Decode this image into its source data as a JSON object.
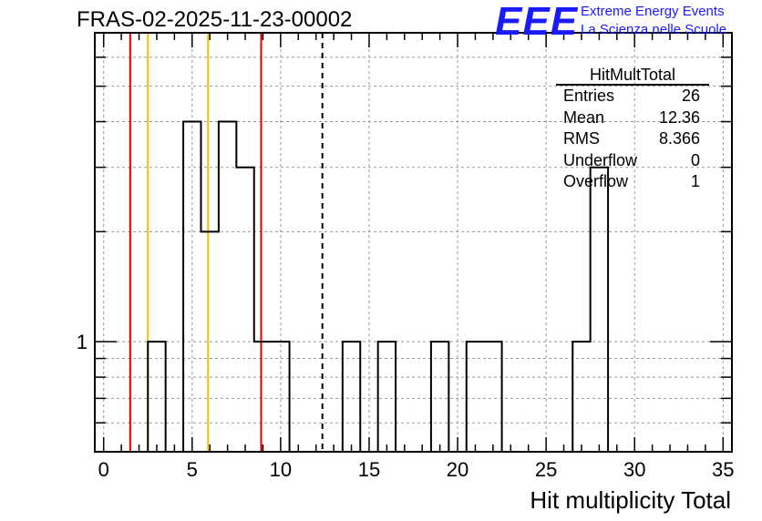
{
  "title": "FRAS-02-2025-11-23-00002",
  "logo": {
    "mark": "EEE",
    "line1": "Extreme Energy Events",
    "line2": "La Scienza nelle Scuole",
    "color": "#1a1aff"
  },
  "stats_box": {
    "name": "HitMultTotal",
    "rows": [
      {
        "label": "Entries",
        "value": "26"
      },
      {
        "label": "Mean",
        "value": "12.36"
      },
      {
        "label": "RMS",
        "value": "8.366"
      },
      {
        "label": "Underflow",
        "value": "0"
      },
      {
        "label": "Overflow",
        "value": "1"
      }
    ]
  },
  "chart_data": {
    "type": "bar",
    "title": "FRAS-02-2025-11-23-00002",
    "xlabel": "Hit multiplicity Total",
    "ylabel": "",
    "xlim": [
      -0.5,
      35.5
    ],
    "ylim": [
      0.5,
      7
    ],
    "y_scale": "log",
    "grid": true,
    "x_ticks": [
      "0",
      "5",
      "10",
      "15",
      "20",
      "25",
      "30",
      "35"
    ],
    "y_tick_labels": [
      "1"
    ],
    "bin_width": 1,
    "bins": [
      {
        "x": 3,
        "value": 1
      },
      {
        "x": 5,
        "value": 4
      },
      {
        "x": 6,
        "value": 2
      },
      {
        "x": 7,
        "value": 4
      },
      {
        "x": 8,
        "value": 3
      },
      {
        "x": 9,
        "value": 1
      },
      {
        "x": 10,
        "value": 1
      },
      {
        "x": 14,
        "value": 1
      },
      {
        "x": 16,
        "value": 1
      },
      {
        "x": 19,
        "value": 1
      },
      {
        "x": 21,
        "value": 1
      },
      {
        "x": 22,
        "value": 1
      },
      {
        "x": 27,
        "value": 1
      },
      {
        "x": 28,
        "value": 3
      }
    ],
    "vertical_lines": [
      {
        "x": 1.5,
        "color": "#e00000",
        "style": "solid"
      },
      {
        "x": 2.5,
        "color": "#f0c000",
        "style": "solid"
      },
      {
        "x": 5.9,
        "color": "#f0c000",
        "style": "solid"
      },
      {
        "x": 8.9,
        "color": "#e00000",
        "style": "solid"
      },
      {
        "x": 12.36,
        "color": "#000000",
        "style": "dashed"
      }
    ],
    "line_color": "#000000"
  }
}
